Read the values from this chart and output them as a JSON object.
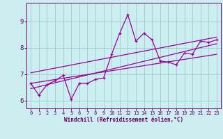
{
  "xlabel": "Windchill (Refroidissement éolien,°C)",
  "bg_color": "#cceef0",
  "line_color": "#990099",
  "grid_color": "#99cccc",
  "text_color": "#660066",
  "xlim": [
    -0.5,
    23.5
  ],
  "ylim": [
    5.7,
    9.7
  ],
  "yticks": [
    6,
    7,
    8,
    9
  ],
  "xticks": [
    0,
    1,
    2,
    3,
    4,
    5,
    6,
    7,
    8,
    9,
    10,
    11,
    12,
    13,
    14,
    15,
    16,
    17,
    18,
    19,
    20,
    21,
    22,
    23
  ],
  "scatter_x": [
    0,
    1,
    2,
    3,
    4,
    5,
    6,
    7,
    8,
    9,
    10,
    11,
    12,
    13,
    14,
    15,
    16,
    17,
    18,
    19,
    20,
    21,
    22,
    23
  ],
  "scatter_y": [
    6.65,
    6.2,
    6.6,
    6.75,
    6.95,
    6.05,
    6.65,
    6.65,
    6.8,
    6.85,
    7.75,
    8.55,
    9.25,
    8.25,
    8.55,
    8.3,
    7.5,
    7.45,
    7.35,
    7.8,
    7.75,
    8.25,
    8.2,
    8.3
  ],
  "reg_line1_x": [
    0,
    23
  ],
  "reg_line1_y": [
    6.45,
    8.15
  ],
  "reg_line2_x": [
    0,
    23
  ],
  "reg_line2_y": [
    6.65,
    7.75
  ],
  "reg_line3_x": [
    0,
    23
  ],
  "reg_line3_y": [
    7.05,
    8.4
  ]
}
